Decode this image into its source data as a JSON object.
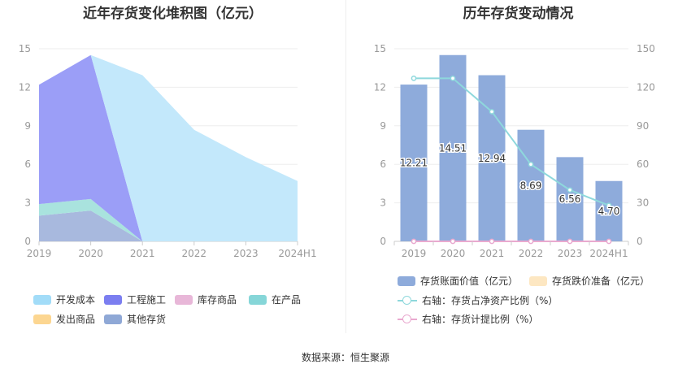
{
  "left_title": "近年存货变化堆积图（亿元）",
  "right_title": "历年存货变动情况",
  "source": "数据来源：恒生聚源",
  "chart_data": [
    {
      "type": "area",
      "stacked": true,
      "title": "近年存货变化堆积图（亿元）",
      "categories": [
        "2019",
        "2020",
        "2021",
        "2022",
        "2023",
        "2024H1"
      ],
      "ylim": [
        0,
        15
      ],
      "yticks": [
        0,
        3,
        6,
        9,
        12,
        15
      ],
      "grid": true,
      "legend_position": "bottom",
      "series": [
        {
          "name": "其他存货",
          "color": "#a8b9de",
          "values": [
            2.0,
            2.4,
            0,
            0,
            0,
            0
          ]
        },
        {
          "name": "发出商品",
          "color": "#fbd38d",
          "values": [
            0,
            0,
            0,
            0,
            0,
            0
          ]
        },
        {
          "name": "在产品",
          "color": "#a9e3de",
          "values": [
            0.9,
            0.9,
            0,
            0,
            0,
            0
          ]
        },
        {
          "name": "库存商品",
          "color": "#e5b7d5",
          "values": [
            0,
            0,
            0,
            0,
            0,
            0
          ]
        },
        {
          "name": "工程施工",
          "color": "#9b9ef7",
          "values": [
            9.3,
            11.21,
            0,
            0,
            0,
            0
          ]
        },
        {
          "name": "开发成本",
          "color": "#c3e8fb",
          "values": [
            0,
            0,
            12.94,
            8.69,
            6.56,
            4.7
          ]
        }
      ],
      "legend": [
        {
          "name": "开发成本",
          "color": "#a2dcf8"
        },
        {
          "name": "工程施工",
          "color": "#7b7ef0"
        },
        {
          "name": "库存商品",
          "color": "#e8b7d8"
        },
        {
          "name": "在产品",
          "color": "#86d6d8"
        },
        {
          "name": "发出商品",
          "color": "#fcd691"
        },
        {
          "name": "其他存货",
          "color": "#8fa8d6"
        }
      ]
    },
    {
      "type": "bar",
      "title": "历年存货变动情况",
      "categories": [
        "2019",
        "2020",
        "2021",
        "2022",
        "2023",
        "2024H1"
      ],
      "ylim": [
        0,
        15
      ],
      "yticks": [
        0,
        3,
        6,
        9,
        12,
        15
      ],
      "y2lim": [
        0,
        150
      ],
      "y2ticks": [
        0,
        30,
        60,
        90,
        120,
        150
      ],
      "grid": true,
      "legend_position": "bottom",
      "bars": {
        "name": "存货账面价值（亿元）",
        "color": "#8eabdb",
        "values": [
          12.21,
          14.51,
          12.94,
          8.69,
          6.56,
          4.7
        ],
        "labels": [
          "12.21",
          "14.51",
          "12.94",
          "8.69",
          "6.56",
          "4.70"
        ]
      },
      "bars2": {
        "name": "存货跌价准备（亿元）",
        "color": "#fde7c2",
        "values": [
          0,
          0,
          0,
          0,
          0,
          0
        ]
      },
      "line1": {
        "name": "右轴：存货占净资产比例（%）",
        "color": "#8ed8dc",
        "axis": "right",
        "values": [
          127,
          127,
          101,
          60,
          40,
          28
        ]
      },
      "line2": {
        "name": "右轴：存货计提比例（%）",
        "color": "#e9a9cf",
        "axis": "right",
        "values": [
          0,
          0,
          0,
          0,
          0,
          0
        ]
      }
    }
  ]
}
